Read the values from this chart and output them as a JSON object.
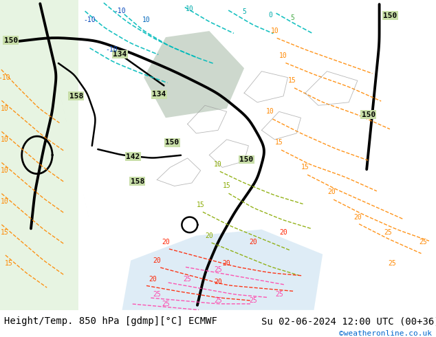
{
  "background_color": "#ffffff",
  "map_bg_color": "#c8dea8",
  "footer_left": "Height/Temp. 850 hPa [gdmp][°C] ECMWF",
  "footer_right": "Su 02-06-2024 12:00 UTC (00+36)",
  "footer_url": "©weatheronline.co.uk",
  "footer_font_size": 10,
  "footer_url_color": "#0066cc",
  "footer_text_color": "#000000",
  "fig_width": 6.34,
  "fig_height": 4.9,
  "dpi": 100
}
